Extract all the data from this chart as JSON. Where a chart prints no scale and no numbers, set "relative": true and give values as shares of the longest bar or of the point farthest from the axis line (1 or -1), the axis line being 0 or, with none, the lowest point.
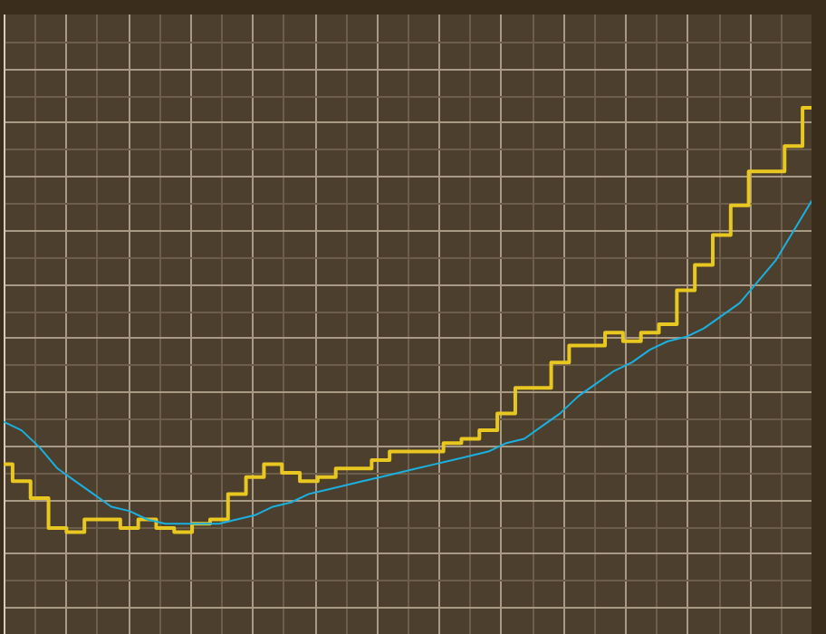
{
  "chart_data": {
    "type": "line",
    "relative": true,
    "grid": true,
    "legend": false,
    "marker": "none",
    "categories": [
      null,
      null,
      null,
      null,
      null,
      null,
      null,
      null,
      null,
      null,
      null,
      null,
      null,
      null,
      null,
      null,
      null,
      null,
      null,
      null,
      null,
      null,
      null,
      null,
      null,
      null,
      null,
      null,
      null,
      null,
      null,
      null,
      null,
      null,
      null,
      null,
      null,
      null,
      null,
      null,
      null,
      null,
      null,
      null,
      null,
      null
    ],
    "series": [
      {
        "type": "step",
        "color": "#e8c820",
        "values": [
          0.16,
          0.12,
          0.08,
          0.01,
          0,
          0.03,
          0.03,
          0.01,
          0.03,
          0.01,
          0,
          0.02,
          0.03,
          0.09,
          0.13,
          0.16,
          0.14,
          0.12,
          0.13,
          0.15,
          0.15,
          0.17,
          0.19,
          0.19,
          0.19,
          0.21,
          0.22,
          0.24,
          0.28,
          0.34,
          0.34,
          0.4,
          0.44,
          0.44,
          0.47,
          0.45,
          0.47,
          0.49,
          0.57,
          0.63,
          0.7,
          0.77,
          0.85,
          0.85,
          0.91,
          1
        ]
      },
      {
        "type": "line",
        "color": "#1ab0e0",
        "values": [
          0.26,
          0.24,
          0.2,
          0.15,
          0.12,
          0.09,
          0.06,
          0.05,
          0.03,
          0.02,
          0.02,
          0.02,
          0.02,
          0.03,
          0.04,
          0.06,
          0.07,
          0.09,
          0.1,
          0.11,
          0.12,
          0.13,
          0.14,
          0.15,
          0.16,
          0.17,
          0.18,
          0.19,
          0.21,
          0.22,
          0.25,
          0.28,
          0.32,
          0.35,
          0.38,
          0.4,
          0.43,
          0.45,
          0.46,
          0.48,
          0.51,
          0.54,
          0.59,
          0.64,
          0.71,
          0.78
        ]
      }
    ]
  }
}
